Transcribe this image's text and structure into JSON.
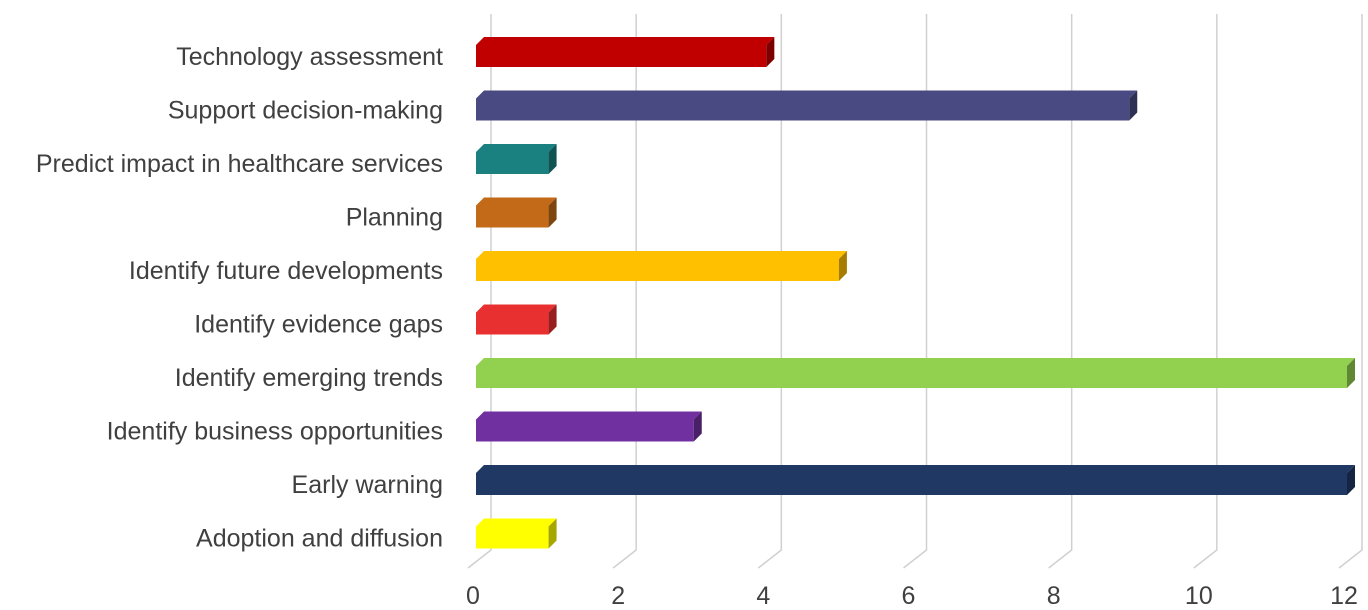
{
  "chart_data": {
    "type": "bar",
    "orientation": "horizontal",
    "style": "3d",
    "title": "",
    "xlabel": "",
    "ylabel": "",
    "xlim": [
      0,
      12
    ],
    "grid": true,
    "legend": "none",
    "x_ticks": [
      "0",
      "2",
      "4",
      "6",
      "8",
      "10",
      "12"
    ],
    "categories": [
      "Technology assessment",
      "Support decision-making",
      "Predict impact in healthcare services",
      "Planning",
      "Identify future developments",
      "Identify evidence gaps",
      "Identify emerging trends",
      "Identify business opportunities",
      "Early warning",
      "Adoption and diffusion"
    ],
    "values": [
      4,
      9,
      1,
      1,
      5,
      1,
      12,
      3,
      12,
      1
    ],
    "colors": [
      "#c00000",
      "#4a4a82",
      "#1a8080",
      "#c26a17",
      "#ffc000",
      "#e83030",
      "#92d050",
      "#7030a0",
      "#1f3864",
      "#ffff00"
    ]
  }
}
